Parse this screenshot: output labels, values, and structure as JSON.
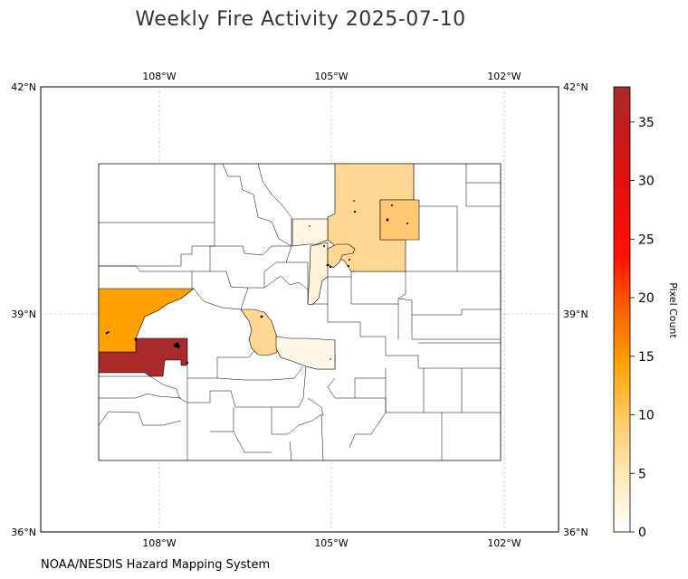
{
  "title": "Weekly Fire Activity 2025-07-10",
  "credit": "NOAA/NESDIS Hazard Mapping System",
  "colorbar": {
    "label": "Pixel Count",
    "ticks": [
      "0",
      "5",
      "10",
      "15",
      "20",
      "25",
      "30",
      "35"
    ],
    "min": 0,
    "max": 38,
    "colormap": [
      "#ffffff",
      "#ffdb8f",
      "#ffa000",
      "#ff0000",
      "#a82a2a"
    ]
  },
  "axes": {
    "lon_labels": [
      "108°W",
      "105°W",
      "102°W"
    ],
    "lat_labels_left": [
      "42°N",
      "39°N",
      "36°N"
    ],
    "lat_labels_right": [
      "42°N",
      "39°N",
      "36°N"
    ],
    "lon_range": [
      -109,
      -100
    ],
    "lat_range": [
      36,
      42
    ],
    "gridlines": true
  },
  "colors": {
    "outline": "#000000",
    "grid": "#b0b0b0",
    "hotspot": "#000000"
  },
  "legend_placement": "right colorbar"
}
